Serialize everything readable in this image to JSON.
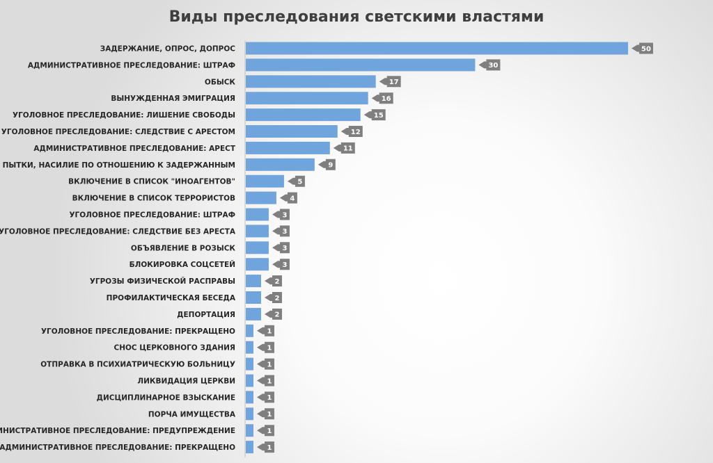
{
  "chart_data": {
    "type": "bar",
    "orientation": "horizontal",
    "title": "Виды преследования светскими властями",
    "xlabel": "",
    "ylabel": "",
    "xlim": [
      0,
      50
    ],
    "grid": false,
    "legend": "none",
    "bar_color": "#6fa4dc",
    "label_box_color": "#7f7f7f",
    "categories": [
      "ЗАДЕРЖАНИЕ, ОПРОС, ДОПРОС",
      "АДМИНИСТРАТИВНОЕ ПРЕСЛЕДОВАНИЕ: ШТРАФ",
      "ОБЫСК",
      "ВЫНУЖДЕННАЯ ЭМИГРАЦИЯ",
      "УГОЛОВНОЕ ПРЕСЛЕДОВАНИЕ: ЛИШЕНИЕ СВОБОДЫ",
      "УГОЛОВНОЕ ПРЕСЛЕДОВАНИЕ: СЛЕДСТВИЕ С АРЕСТОМ",
      "АДМИНИСТРАТИВНОЕ ПРЕСЛЕДОВАНИЕ: АРЕСТ",
      "ПЫТКИ, НАСИЛИЕ ПО ОТНОШЕНИЮ К ЗАДЕРЖАННЫМ",
      "ВКЛЮЧЕНИЕ В СПИСОК \"ИНОАГЕНТОВ\"",
      "ВКЛЮЧЕНИЕ В СПИСОК ТЕРРОРИСТОВ",
      "УГОЛОВНОЕ ПРЕСЛЕДОВАНИЕ: ШТРАФ",
      "УГОЛОВНОЕ ПРЕСЛЕДОВАНИЕ: СЛЕДСТВИЕ БЕЗ АРЕСТА",
      "ОБЪЯВЛЕНИЕ В РОЗЫСК",
      "БЛОКИРОВКА СОЦСЕТЕЙ",
      "УГРОЗЫ ФИЗИЧЕСКОЙ РАСПРАВЫ",
      "ПРОФИЛАКТИЧЕСКАЯ БЕСЕДА",
      "ДЕПОРТАЦИЯ",
      "УГОЛОВНОЕ ПРЕСЛЕДОВАНИЕ: ПРЕКРАЩЕНО",
      "СНОС ЦЕРКОВНОГО ЗДАНИЯ",
      "ОТПРАВКА В ПСИХИАТРИЧЕСКУЮ БОЛЬНИЦУ",
      "ЛИКВИДАЦИЯ ЦЕРКВИ",
      "ДИСЦИПЛИНАРНОЕ ВЗЫСКАНИЕ",
      "ПОРЧА ИМУЩЕСТВА",
      "АДМИНИСТРАТИВНОЕ ПРЕСЛЕДОВАНИЕ: ПРЕДУПРЕЖДЕНИЕ",
      "АДМИНИСТРАТИВНОЕ ПРЕСЛЕДОВАНИЕ: ПРЕКРАЩЕНО"
    ],
    "values": [
      50,
      30,
      17,
      16,
      15,
      12,
      11,
      9,
      5,
      4,
      3,
      3,
      3,
      3,
      2,
      2,
      2,
      1,
      1,
      1,
      1,
      1,
      1,
      1,
      1
    ]
  }
}
